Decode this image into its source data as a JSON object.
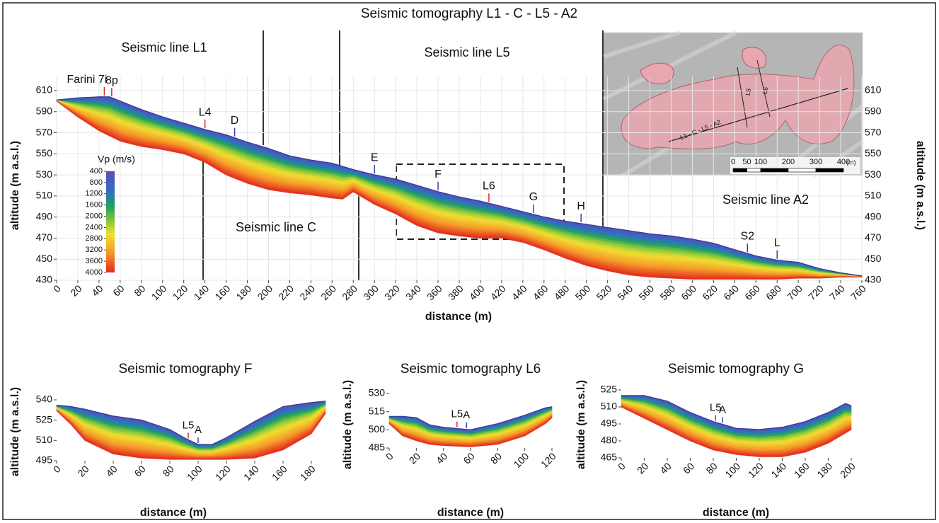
{
  "main": {
    "title": "Seismic tomography L1 - C - L5 - A2",
    "xlabel": "distance (m)",
    "ylabel": "altitude (m a.s.l.)",
    "xlim": [
      0,
      760
    ],
    "ylim": [
      430,
      610
    ],
    "xticks": [
      0,
      20,
      40,
      60,
      80,
      100,
      120,
      140,
      160,
      180,
      200,
      220,
      240,
      260,
      280,
      300,
      320,
      340,
      360,
      380,
      400,
      420,
      440,
      460,
      480,
      500,
      520,
      540,
      560,
      580,
      600,
      620,
      640,
      660,
      680,
      700,
      720,
      740,
      760
    ],
    "yticks": [
      430,
      450,
      470,
      490,
      510,
      530,
      550,
      570,
      590,
      610
    ],
    "grid": true,
    "right_axis": true,
    "line_labels": [
      "Seismic line L1",
      "Seismic line L5",
      "Seismic line C",
      "Seismic line A2"
    ],
    "profile": {
      "x": [
        0,
        20,
        40,
        50,
        60,
        80,
        100,
        120,
        140,
        160,
        180,
        200,
        220,
        240,
        260,
        270,
        280,
        300,
        320,
        340,
        360,
        380,
        400,
        420,
        440,
        460,
        480,
        500,
        520,
        540,
        560,
        580,
        600,
        620,
        640,
        660,
        680,
        700,
        720,
        740,
        760
      ],
      "top": [
        601,
        603,
        604,
        604,
        600,
        592,
        585,
        579,
        573,
        568,
        561,
        555,
        548,
        544,
        541,
        538,
        535,
        530,
        526,
        520,
        514,
        509,
        505,
        500,
        495,
        490,
        486,
        483,
        480,
        477,
        474,
        472,
        469,
        465,
        459,
        453,
        449,
        447,
        441,
        437,
        434
      ],
      "base": [
        600,
        585,
        572,
        567,
        562,
        557,
        554,
        550,
        542,
        530,
        522,
        516,
        513,
        511,
        508,
        507,
        514,
        502,
        493,
        482,
        475,
        472,
        470,
        470,
        466,
        459,
        451,
        444,
        439,
        435,
        433,
        432,
        431,
        431,
        431,
        431,
        431,
        432,
        432,
        433,
        433
      ]
    },
    "markers": [
      {
        "label": "Farini 7i",
        "x": 45,
        "color": "#e2232a"
      },
      {
        "label": "8p",
        "x": 52,
        "color": "#e2232a"
      },
      {
        "label": "L4",
        "x": 140,
        "color": "#e2232a"
      },
      {
        "label": "D",
        "x": 168,
        "color": "#3b3fae"
      },
      {
        "label": "E",
        "x": 300,
        "color": "#3b3fae"
      },
      {
        "label": "F",
        "x": 360,
        "color": "#3b3fae"
      },
      {
        "label": "L6",
        "x": 408,
        "color": "#e2232a"
      },
      {
        "label": "G",
        "x": 450,
        "color": "#3b3fae"
      },
      {
        "label": "H",
        "x": 495,
        "color": "#3b3fae"
      },
      {
        "label": "S2",
        "x": 652,
        "color": "#3b3fae"
      },
      {
        "label": "L",
        "x": 680,
        "color": "#3b3fae"
      }
    ],
    "colorbar": {
      "title": "Vp (m/s)",
      "ticks": [
        400,
        800,
        1200,
        1600,
        2000,
        2400,
        2800,
        3200,
        3600,
        4000
      ]
    },
    "map": {
      "scale_ticks": [
        0,
        50,
        100,
        200,
        300,
        400
      ],
      "scale_unit": "(m)",
      "trace_label": "L1 - C - L5 - A2",
      "trace_labels": [
        "L5",
        "L6"
      ]
    }
  },
  "panels": [
    {
      "title": "Seismic tomography F",
      "xlabel": "distance (m)",
      "ylabel": "altitude (m a.s.l.)",
      "xlim": [
        0,
        190
      ],
      "ylim": [
        495,
        540
      ],
      "xticks": [
        0,
        20,
        40,
        60,
        80,
        100,
        120,
        140,
        160,
        180
      ],
      "yticks": [
        495,
        510,
        525,
        540
      ],
      "profile": {
        "x": [
          0,
          10,
          20,
          40,
          60,
          80,
          90,
          100,
          110,
          120,
          140,
          160,
          180,
          190
        ],
        "top": [
          536,
          535,
          533,
          528,
          525,
          518,
          512,
          507,
          507,
          512,
          524,
          535,
          538,
          539
        ],
        "base": [
          532,
          522,
          510,
          500,
          497,
          496,
          496,
          496,
          496,
          496,
          497,
          503,
          515,
          530
        ]
      },
      "markers": [
        {
          "label": "L5",
          "x": 93,
          "color": "#e2232a"
        },
        {
          "label": "A",
          "x": 100,
          "color": "#3b3fae"
        }
      ]
    },
    {
      "title": "Seismic tomography L6",
      "xlabel": "distance (m)",
      "ylabel": "altitude (m a.s.l.)",
      "xlim": [
        0,
        120
      ],
      "ylim": [
        485,
        530
      ],
      "xticks": [
        0,
        20,
        40,
        60,
        80,
        100,
        120
      ],
      "yticks": [
        485,
        500,
        515,
        530
      ],
      "profile": {
        "x": [
          0,
          10,
          20,
          30,
          40,
          60,
          80,
          100,
          115,
          120
        ],
        "top": [
          511,
          511,
          510,
          504,
          502,
          500,
          505,
          512,
          518,
          519
        ],
        "base": [
          505,
          495,
          491,
          488,
          487,
          486,
          488,
          495,
          505,
          510
        ]
      },
      "markers": [
        {
          "label": "L5",
          "x": 50,
          "color": "#e2232a"
        },
        {
          "label": "A",
          "x": 57,
          "color": "#3b3fae"
        }
      ]
    },
    {
      "title": "Seismic tomography G",
      "xlabel": "distance (m)",
      "ylabel": "altitude (m a.s.l.)",
      "xlim": [
        0,
        200
      ],
      "ylim": [
        465,
        525
      ],
      "xticks": [
        0,
        20,
        40,
        60,
        80,
        100,
        120,
        140,
        160,
        180,
        200
      ],
      "yticks": [
        465,
        480,
        495,
        510,
        525
      ],
      "profile": {
        "x": [
          0,
          20,
          40,
          60,
          80,
          100,
          120,
          140,
          160,
          180,
          195,
          200
        ],
        "top": [
          520,
          520,
          515,
          505,
          497,
          491,
          490,
          492,
          497,
          505,
          513,
          511
        ],
        "base": [
          510,
          500,
          490,
          480,
          472,
          468,
          466,
          466,
          470,
          478,
          487,
          490
        ]
      },
      "markers": [
        {
          "label": "L5",
          "x": 82,
          "color": "#e2232a"
        },
        {
          "label": "A",
          "x": 88,
          "color": "#3b3fae"
        }
      ]
    }
  ]
}
